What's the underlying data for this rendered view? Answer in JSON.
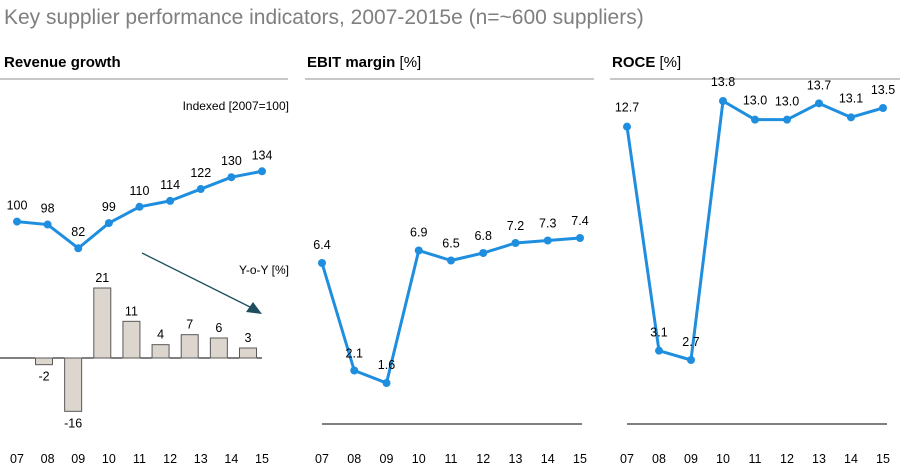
{
  "title": "Key supplier performance indicators, 2007-2015e (n=~600 suppliers)",
  "colors": {
    "line": "#1f8ede",
    "bar_fill": "#ddd6cf",
    "bar_stroke": "#595959",
    "arrow": "#1f4e5f",
    "panel_rule": "#c8c8c8",
    "title": "#7f7f7f"
  },
  "chart_data": [
    {
      "type": "line",
      "title": "Revenue growth",
      "title_unit": "",
      "note": "Indexed [2007=100]",
      "categories": [
        "07",
        "08",
        "09",
        "10",
        "11",
        "12",
        "13",
        "14",
        "15"
      ],
      "series": [
        {
          "values": [
            100,
            98,
            82,
            99,
            110,
            114,
            122,
            130,
            134
          ],
          "labels": [
            "100",
            "98",
            "82",
            "99",
            "110",
            "114",
            "122",
            "130",
            "134"
          ]
        }
      ],
      "ylim": [
        70,
        145
      ]
    },
    {
      "type": "bar",
      "title": "Y-o-Y [%]",
      "categories": [
        "08",
        "09",
        "10",
        "11",
        "12",
        "13",
        "14",
        "15"
      ],
      "values": [
        -2,
        -16,
        21,
        11,
        4,
        7,
        6,
        3
      ],
      "labels": [
        "-2",
        "-16",
        "21",
        "11",
        "4",
        "7",
        "6",
        "3"
      ],
      "ylim": [
        -18,
        23
      ]
    },
    {
      "type": "line",
      "title": "EBIT margin",
      "title_unit": "[%]",
      "categories": [
        "07",
        "08",
        "09",
        "10",
        "11",
        "12",
        "13",
        "14",
        "15"
      ],
      "series": [
        {
          "values": [
            6.4,
            2.1,
            1.6,
            6.9,
            6.5,
            6.8,
            7.2,
            7.3,
            7.4
          ],
          "labels": [
            "6.4",
            "2.1",
            "1.6",
            "6.9",
            "6.5",
            "6.8",
            "7.2",
            "7.3",
            "7.4"
          ]
        }
      ],
      "ylim": [
        0,
        8
      ]
    },
    {
      "type": "line",
      "title": "ROCE",
      "title_unit": "[%]",
      "categories": [
        "07",
        "08",
        "09",
        "10",
        "11",
        "12",
        "13",
        "14",
        "15"
      ],
      "series": [
        {
          "values": [
            12.7,
            3.1,
            2.7,
            13.8,
            13.0,
            13.0,
            13.7,
            13.1,
            13.5
          ],
          "labels": [
            "12.7",
            "3.1",
            "2.7",
            "13.8",
            "13.0",
            "13.0",
            "13.7",
            "13.1",
            "13.5"
          ]
        }
      ],
      "ylim": [
        0,
        15
      ]
    }
  ]
}
